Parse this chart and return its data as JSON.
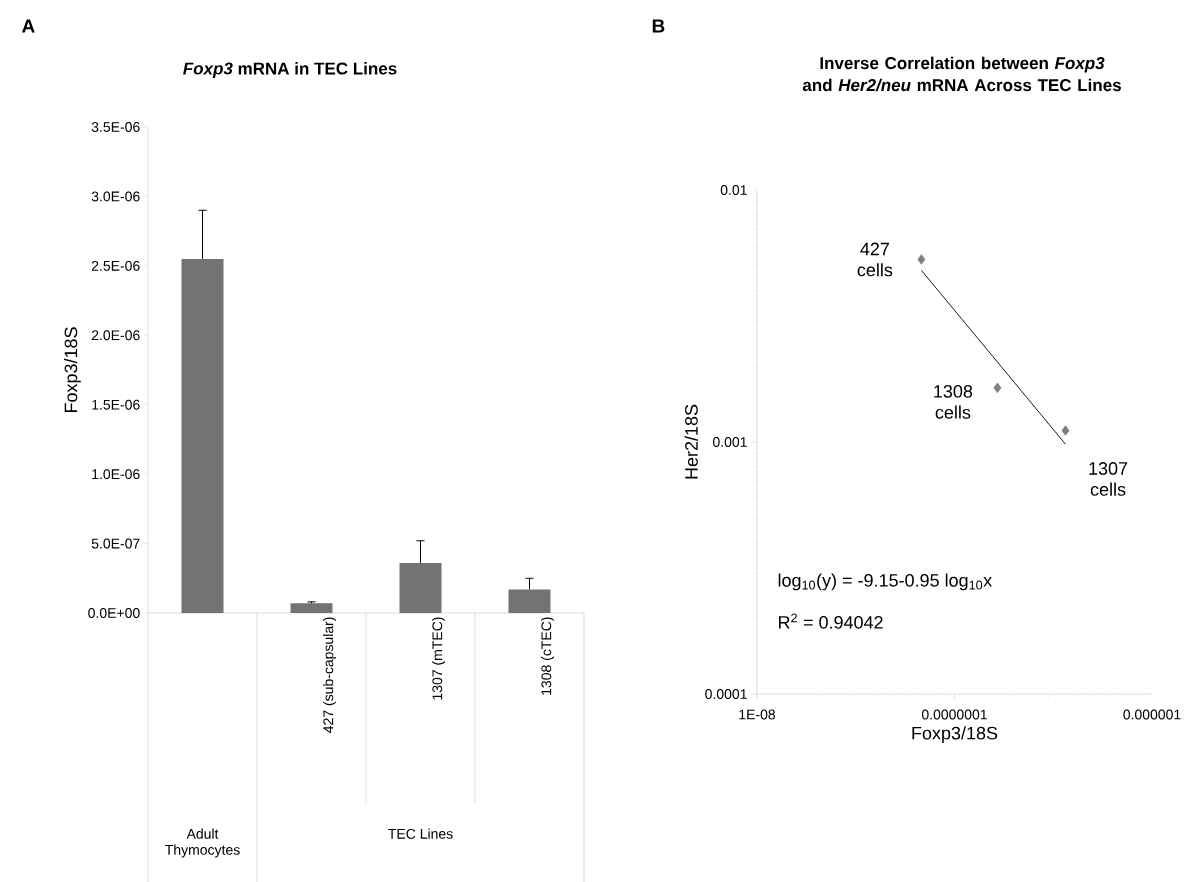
{
  "chart_data": [
    {
      "type": "bar",
      "title": "*Foxp3* mRNA in TEC Lines",
      "ylabel": "Foxp3/18S",
      "categories": [
        null,
        "427 (sub-capsular)",
        "1307 (mTEC)",
        "1308 (cTEC)"
      ],
      "values": [
        2.55e-06,
        7e-08,
        3.6e-07,
        1.7e-07
      ],
      "errors": [
        [
          2.55e-06,
          2.9e-06
        ],
        [
          7e-08,
          8e-08
        ],
        [
          3.6e-07,
          5.2e-07
        ],
        [
          1.7e-07,
          2.5e-07
        ]
      ],
      "color": "#737373",
      "ylim": [
        0,
        3.5e-06
      ],
      "yticks": [
        {
          "value": 0,
          "label": "0.0E+00"
        },
        {
          "value": 5e-07,
          "label": "5.0E-07"
        },
        {
          "value": 1e-06,
          "label": "1.0E-06"
        },
        {
          "value": 1.5e-06,
          "label": "1.5E-06"
        },
        {
          "value": 2e-06,
          "label": "2.0E-06"
        },
        {
          "value": 2.5e-06,
          "label": "2.5E-06"
        },
        {
          "value": 3e-06,
          "label": "3.0E-06"
        },
        {
          "value": 3.5e-06,
          "label": "3.5E-06"
        }
      ],
      "annotations": [
        "A",
        "Adult Thymocytes",
        "TEC Lines"
      ]
    },
    {
      "type": "scatter",
      "title": "Inverse Correlation between *Foxp3* and *Her2/neu* mRNA Across TEC Lines",
      "xlabel": "Foxp3/18S",
      "ylabel": "Her2/18S",
      "log": "xy",
      "marker": "diamond",
      "xlim": [
        1e-08,
        1e-06
      ],
      "ylim": [
        0.0001,
        0.01
      ],
      "xticks": [
        {
          "value": 1e-08,
          "label": "1E-08"
        },
        {
          "value": 1e-07,
          "label": "0.0000001"
        },
        {
          "value": 1e-06,
          "label": "0.000001"
        }
      ],
      "yticks": [
        0.0001,
        0.001,
        0.01
      ],
      "series": [
        {
          "type": "scatter",
          "color": "#7f7f7f",
          "x": [
            6.8e-08,
            1.65e-07,
            3.65e-07
          ],
          "values": [
            0.0053,
            0.00164,
            0.00111
          ]
        },
        {
          "type": "line",
          "marker": "none",
          "color": "#000000",
          "x": [
            6.8e-08,
            3.65e-07
          ],
          "values": [
            0.0048,
            0.00098
          ]
        }
      ],
      "annotations": [
        "B",
        {
          "text": "427 cells",
          "x": 6.8e-08,
          "y": 0.0053
        },
        {
          "text": "1308 cells",
          "x": 1.65e-07,
          "y": 0.00164
        },
        {
          "text": "1307 cells",
          "x": 3.65e-07,
          "y": 0.00111
        },
        "log$_{10}$(y) = -9.15-0.95 log$_{10}$x",
        "R$^{2}$ = 0.94042"
      ]
    }
  ]
}
